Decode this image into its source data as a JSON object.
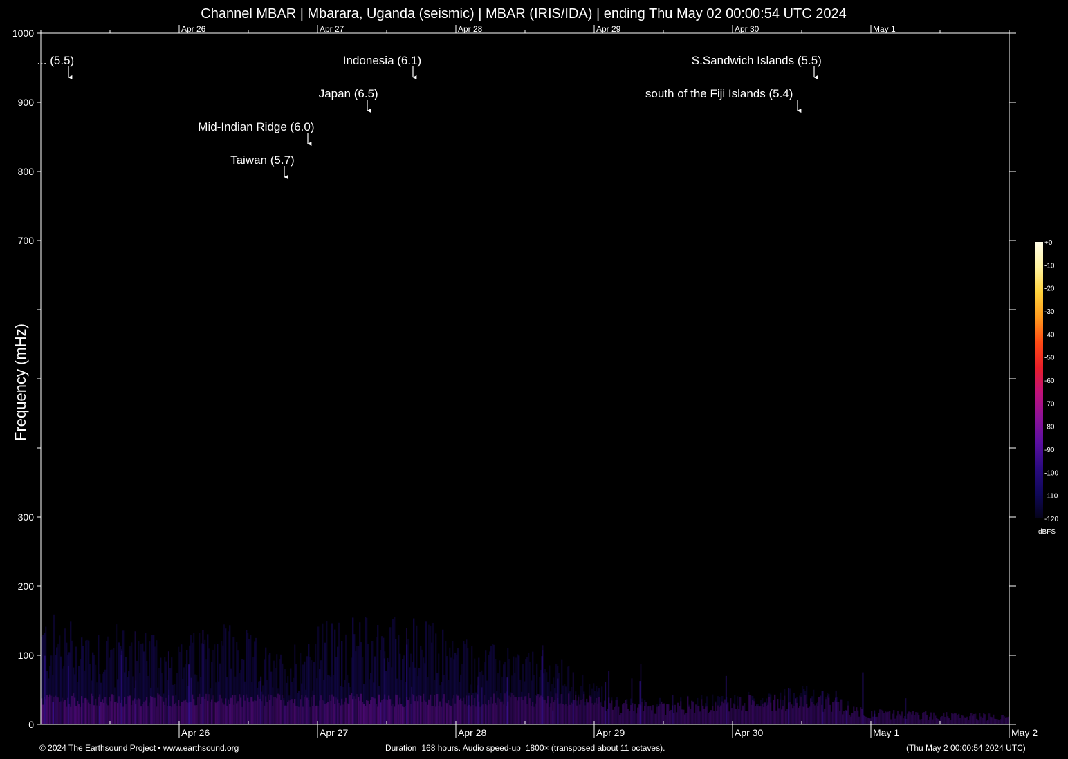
{
  "title": "Channel MBAR | Mbarara, Uganda (seismic) | MBAR (IRIS/IDA) | ending Thu May 02 00:00:54 UTC 2024",
  "ylabel": "Frequency (mHz)",
  "footer": {
    "left": "© 2024 The Earthsound Project • www.earthsound.org",
    "center": "Duration=168 hours. Audio speed-up=1800× (transposed about 11 octaves).",
    "right": "(Thu May  2 00:00:54 2024 UTC)"
  },
  "colors": {
    "background": "#000000",
    "axis": "#ffffff",
    "colormap": [
      "#fffde8",
      "#fff3a0",
      "#ffd23c",
      "#ff9a1e",
      "#ff4a14",
      "#e81e2a",
      "#c0127a",
      "#8c1298",
      "#5a0fa0",
      "#2a0a80",
      "#10085a",
      "#05031a"
    ]
  },
  "chart_data": {
    "type": "heatmap",
    "title": "Channel MBAR | Mbarara, Uganda (seismic) | MBAR (IRIS/IDA) | ending Thu May 02 00:00:54 UTC 2024",
    "xlabel": "",
    "ylabel": "Frequency (mHz)",
    "ylim": [
      0,
      1000
    ],
    "y_tick_labels": [
      "0",
      "100",
      "200",
      "300",
      "700",
      "800",
      "900",
      "1000"
    ],
    "y_tick_values": [
      0,
      100,
      200,
      300,
      700,
      800,
      900,
      1000
    ],
    "y_unlabeled_ticks": [
      400,
      500,
      600
    ],
    "xlim_days": [
      0,
      7
    ],
    "x_ticks": [
      {
        "label": "Apr 26",
        "day": 1
      },
      {
        "label": "Apr 27",
        "day": 2
      },
      {
        "label": "Apr 28",
        "day": 3
      },
      {
        "label": "Apr 29",
        "day": 4
      },
      {
        "label": "Apr 30",
        "day": 5
      },
      {
        "label": "May  1",
        "day": 6
      },
      {
        "label": "May  2",
        "day": 7
      }
    ],
    "top_x_labels": [
      "Apr 26",
      "Apr 27",
      "Apr 28",
      "Apr 29",
      "Apr 30",
      "May  1"
    ],
    "colorbar": {
      "label": "dBFS",
      "ticks": [
        "+0",
        "-10",
        "-20",
        "-30",
        "-40",
        "-50",
        "-60",
        "-70",
        "-80",
        "-90",
        "-100",
        "-110",
        "-120"
      ],
      "range": [
        -120,
        0
      ]
    },
    "annotations": [
      {
        "text": "... (5.5)",
        "day": 0.2,
        "row": 0
      },
      {
        "text": "Indonesia (6.1)",
        "day": 2.69,
        "row": 0
      },
      {
        "text": "S.Sandwich Islands (5.5)",
        "day": 5.59,
        "row": 0
      },
      {
        "text": "Japan (6.5)",
        "day": 2.36,
        "row": 1
      },
      {
        "text": "south of the Fiji Islands (5.4)",
        "day": 5.47,
        "row": 1
      },
      {
        "text": "Mid-Indian Ridge (6.0)",
        "day": 1.93,
        "row": 2
      },
      {
        "text": "Taiwan (5.7)",
        "day": 1.76,
        "row": 3
      }
    ],
    "activity_profile": [
      {
        "day": 0.0,
        "top_mhz": 110,
        "intensity": 0.55
      },
      {
        "day": 0.5,
        "top_mhz": 100,
        "intensity": 0.5
      },
      {
        "day": 1.0,
        "top_mhz": 80,
        "intensity": 0.45
      },
      {
        "day": 1.3,
        "top_mhz": 110,
        "intensity": 0.5
      },
      {
        "day": 1.7,
        "top_mhz": 70,
        "intensity": 0.4
      },
      {
        "day": 2.0,
        "top_mhz": 100,
        "intensity": 0.55
      },
      {
        "day": 2.5,
        "top_mhz": 110,
        "intensity": 0.6
      },
      {
        "day": 2.85,
        "top_mhz": 100,
        "intensity": 0.5
      },
      {
        "day": 3.2,
        "top_mhz": 80,
        "intensity": 0.35
      },
      {
        "day": 3.7,
        "top_mhz": 70,
        "intensity": 0.3
      },
      {
        "day": 4.2,
        "top_mhz": 25,
        "intensity": 0.18
      },
      {
        "day": 5.0,
        "top_mhz": 30,
        "intensity": 0.2
      },
      {
        "day": 5.5,
        "top_mhz": 40,
        "intensity": 0.22
      },
      {
        "day": 6.0,
        "top_mhz": 15,
        "intensity": 0.12
      },
      {
        "day": 7.0,
        "top_mhz": 10,
        "intensity": 0.08
      }
    ]
  }
}
